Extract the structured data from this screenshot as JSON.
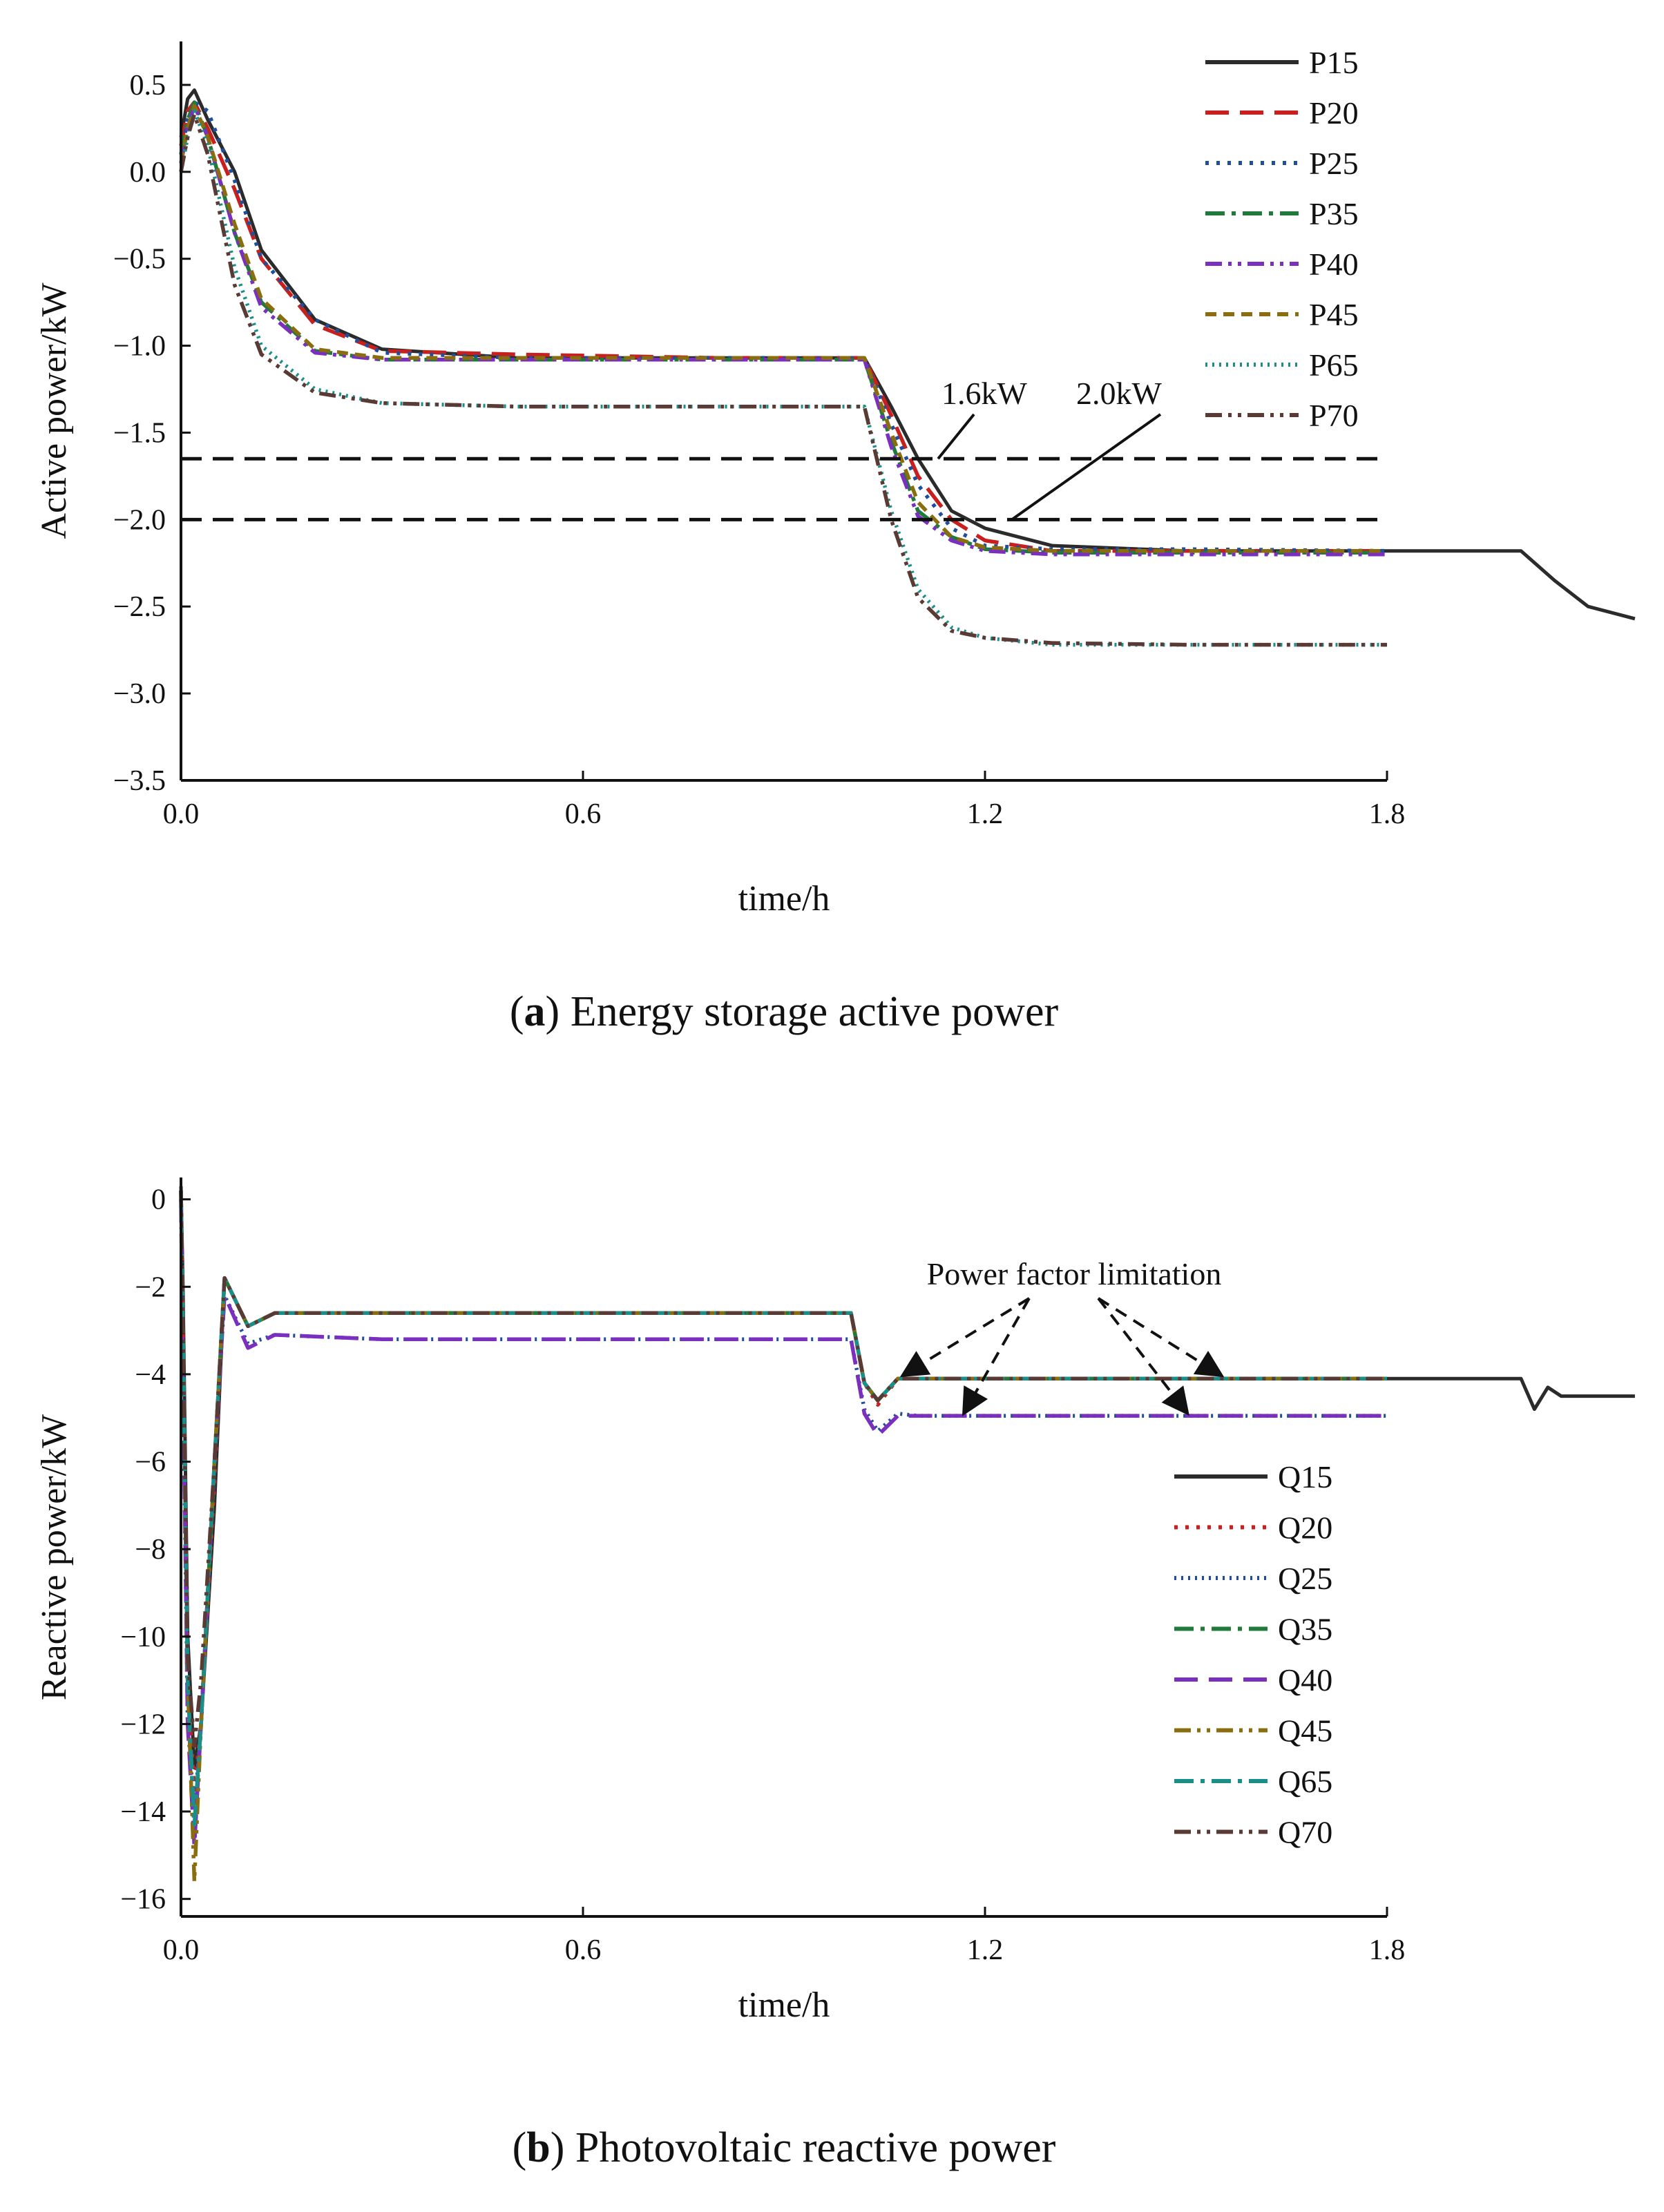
{
  "chart_data": [
    {
      "type": "line",
      "panel": "a",
      "caption_letter": "a",
      "caption_text": "Energy storage active power",
      "xlabel": "time/h",
      "ylabel": "Active power/kW",
      "xlim": [
        0,
        1.8
      ],
      "ylim": [
        -3.5,
        0.75
      ],
      "xticks": [
        0.0,
        0.6,
        1.2,
        1.8
      ],
      "xtick_labels": [
        "0.0",
        "0.6",
        "1.2",
        "1.8"
      ],
      "yticks": [
        0.5,
        0.0,
        -0.5,
        -1.0,
        -1.5,
        -2.0,
        -2.5,
        -3.0,
        -3.5
      ],
      "ytick_labels": [
        "0.5",
        "0.0",
        "−0.5",
        "−1.0",
        "−1.5",
        "−2.0",
        "−2.5",
        "−3.0",
        "−3.5"
      ],
      "reference_lines": [
        {
          "value": -1.65,
          "label": "1.6kW",
          "style": "dashed"
        },
        {
          "value": -2.0,
          "label": "2.0kW",
          "style": "dashed"
        }
      ],
      "legend_position": "top-right",
      "series": [
        {
          "name": "P15",
          "color": "#2b2b2b",
          "dash": "solid",
          "x": [
            0.0,
            0.01,
            0.02,
            0.04,
            0.08,
            0.12,
            0.2,
            0.3,
            0.5,
            0.8,
            1.02,
            1.06,
            1.1,
            1.15,
            1.2,
            1.3,
            1.5,
            1.8,
            2.0,
            2.05,
            2.1,
            2.17
          ],
          "y": [
            0.2,
            0.42,
            0.47,
            0.3,
            0.0,
            -0.45,
            -0.85,
            -1.02,
            -1.07,
            -1.07,
            -1.07,
            -1.35,
            -1.65,
            -1.95,
            -2.05,
            -2.15,
            -2.18,
            -2.18,
            -2.18,
            -2.35,
            -2.5,
            -2.57
          ]
        },
        {
          "name": "P20",
          "color": "#c8201e",
          "dash": "long-dash",
          "x": [
            0.0,
            0.01,
            0.02,
            0.04,
            0.08,
            0.12,
            0.2,
            0.3,
            0.5,
            0.8,
            1.02,
            1.06,
            1.1,
            1.15,
            1.2,
            1.3,
            1.5,
            1.8
          ],
          "y": [
            0.15,
            0.35,
            0.4,
            0.25,
            -0.1,
            -0.5,
            -0.88,
            -1.03,
            -1.05,
            -1.07,
            -1.07,
            -1.4,
            -1.75,
            -2.0,
            -2.12,
            -2.18,
            -2.18,
            -2.18
          ]
        },
        {
          "name": "P25",
          "color": "#1f4e9c",
          "dash": "dotted",
          "x": [
            0.0,
            0.01,
            0.02,
            0.04,
            0.08,
            0.12,
            0.2,
            0.3,
            0.5,
            0.8,
            1.02,
            1.06,
            1.1,
            1.15,
            1.2,
            1.3,
            1.5,
            1.8
          ],
          "y": [
            0.1,
            0.3,
            0.4,
            0.35,
            -0.05,
            -0.5,
            -0.85,
            -1.04,
            -1.07,
            -1.07,
            -1.07,
            -1.45,
            -1.8,
            -2.05,
            -2.15,
            -2.17,
            -2.17,
            -2.18
          ]
        },
        {
          "name": "P35",
          "color": "#217a3c",
          "dash": "dash-dot",
          "x": [
            0.0,
            0.01,
            0.02,
            0.04,
            0.08,
            0.12,
            0.2,
            0.3,
            0.5,
            0.8,
            1.02,
            1.06,
            1.1,
            1.15,
            1.2,
            1.3,
            1.5,
            1.8
          ],
          "y": [
            0.1,
            0.3,
            0.4,
            0.2,
            -0.35,
            -0.75,
            -1.03,
            -1.08,
            -1.08,
            -1.08,
            -1.08,
            -1.55,
            -1.95,
            -2.1,
            -2.17,
            -2.19,
            -2.19,
            -2.19
          ]
        },
        {
          "name": "P40",
          "color": "#7b2fbe",
          "dash": "dash-dot-dot",
          "x": [
            0.0,
            0.01,
            0.02,
            0.04,
            0.08,
            0.12,
            0.2,
            0.3,
            0.5,
            0.8,
            1.02,
            1.06,
            1.1,
            1.15,
            1.2,
            1.3,
            1.5,
            1.8
          ],
          "y": [
            0.05,
            0.25,
            0.38,
            0.2,
            -0.35,
            -0.78,
            -1.04,
            -1.08,
            -1.08,
            -1.08,
            -1.08,
            -1.58,
            -1.98,
            -2.12,
            -2.18,
            -2.2,
            -2.2,
            -2.2
          ]
        },
        {
          "name": "P45",
          "color": "#8a6d0f",
          "dash": "short-dash",
          "x": [
            0.0,
            0.01,
            0.02,
            0.04,
            0.08,
            0.12,
            0.2,
            0.3,
            0.5,
            0.8,
            1.02,
            1.06,
            1.1,
            1.15,
            1.2,
            1.3,
            1.5,
            1.8
          ],
          "y": [
            0.05,
            0.25,
            0.38,
            0.2,
            -0.3,
            -0.73,
            -1.02,
            -1.07,
            -1.07,
            -1.07,
            -1.07,
            -1.5,
            -1.9,
            -2.1,
            -2.16,
            -2.18,
            -2.18,
            -2.18
          ]
        },
        {
          "name": "P65",
          "color": "#1a8f8a",
          "dash": "fine-dot",
          "x": [
            0.0,
            0.01,
            0.02,
            0.04,
            0.08,
            0.12,
            0.2,
            0.3,
            0.5,
            0.8,
            1.02,
            1.06,
            1.1,
            1.15,
            1.2,
            1.3,
            1.5,
            1.8
          ],
          "y": [
            0.0,
            0.2,
            0.35,
            0.15,
            -0.55,
            -1.0,
            -1.25,
            -1.33,
            -1.35,
            -1.35,
            -1.35,
            -1.95,
            -2.4,
            -2.62,
            -2.68,
            -2.72,
            -2.72,
            -2.72
          ]
        },
        {
          "name": "P70",
          "color": "#5a3a35",
          "dash": "dash-dot-dot",
          "x": [
            0.0,
            0.01,
            0.02,
            0.04,
            0.08,
            0.12,
            0.2,
            0.3,
            0.5,
            0.8,
            1.02,
            1.06,
            1.1,
            1.15,
            1.2,
            1.3,
            1.5,
            1.8
          ],
          "y": [
            0.0,
            0.2,
            0.33,
            0.1,
            -0.65,
            -1.05,
            -1.27,
            -1.33,
            -1.35,
            -1.35,
            -1.35,
            -2.0,
            -2.45,
            -2.64,
            -2.68,
            -2.71,
            -2.72,
            -2.72
          ]
        }
      ]
    },
    {
      "type": "line",
      "panel": "b",
      "caption_letter": "b",
      "caption_text": "Photovoltaic reactive power",
      "xlabel": "time/h",
      "ylabel": "Reactive power/kW",
      "xlim": [
        0,
        1.8
      ],
      "ylim": [
        -16.4,
        0.5
      ],
      "xticks": [
        0.0,
        0.6,
        1.2,
        1.8
      ],
      "xtick_labels": [
        "0.0",
        "0.6",
        "1.2",
        "1.8"
      ],
      "yticks": [
        0,
        -2,
        -4,
        -6,
        -8,
        -10,
        -12,
        -14,
        -16
      ],
      "ytick_labels": [
        "0",
        "−2",
        "−4",
        "−6",
        "−8",
        "−10",
        "−12",
        "−14",
        "−16"
      ],
      "annotation": "Power factor limitation",
      "legend_position": "right",
      "series": [
        {
          "name": "Q15",
          "color": "#2b2b2b",
          "dash": "solid",
          "x": [
            0.0,
            0.003,
            0.01,
            0.02,
            0.03,
            0.05,
            0.065,
            0.1,
            0.14,
            0.3,
            0.6,
            1.0,
            1.02,
            1.04,
            1.07,
            1.1,
            1.3,
            1.8,
            2.0,
            2.02,
            2.04,
            2.06,
            2.1,
            2.17
          ],
          "y": [
            0.3,
            -2,
            -10,
            -13,
            -12,
            -7,
            -1.8,
            -2.9,
            -2.6,
            -2.6,
            -2.6,
            -2.6,
            -4.2,
            -4.6,
            -4.1,
            -4.1,
            -4.1,
            -4.1,
            -4.1,
            -4.8,
            -4.3,
            -4.5,
            -4.5,
            -4.5
          ]
        },
        {
          "name": "Q20",
          "color": "#c8201e",
          "dash": "dotted",
          "x": [
            0.0,
            0.003,
            0.01,
            0.02,
            0.03,
            0.05,
            0.065,
            0.1,
            0.14,
            0.3,
            0.6,
            1.0,
            1.02,
            1.04,
            1.07,
            1.1,
            1.3,
            1.8
          ],
          "y": [
            0.2,
            -3,
            -11,
            -13.5,
            -12,
            -6.5,
            -1.8,
            -2.9,
            -2.6,
            -2.6,
            -2.6,
            -2.6,
            -4.2,
            -4.7,
            -4.1,
            -4.1,
            -4.1,
            -4.1
          ]
        },
        {
          "name": "Q25",
          "color": "#1f4e9c",
          "dash": "fine-dot",
          "x": [
            0.0,
            0.003,
            0.01,
            0.02,
            0.03,
            0.05,
            0.065,
            0.1,
            0.14,
            0.3,
            0.6,
            1.0,
            1.02,
            1.04,
            1.07,
            1.1,
            1.3,
            1.8
          ],
          "y": [
            0.0,
            -4,
            -12,
            -14,
            -12,
            -6,
            -2.2,
            -3.3,
            -3.1,
            -3.2,
            -3.2,
            -3.2,
            -4.8,
            -5.3,
            -4.9,
            -4.95,
            -4.95,
            -4.95
          ]
        },
        {
          "name": "Q35",
          "color": "#217a3c",
          "dash": "dash-dot",
          "x": [
            0.0,
            0.003,
            0.01,
            0.02,
            0.03,
            0.05,
            0.065,
            0.1,
            0.14,
            0.3,
            0.6,
            1.0,
            1.02,
            1.04,
            1.07,
            1.1,
            1.3,
            1.8
          ],
          "y": [
            0.2,
            -3,
            -11,
            -14.5,
            -12,
            -6,
            -1.8,
            -2.9,
            -2.6,
            -2.6,
            -2.6,
            -2.6,
            -4.2,
            -4.6,
            -4.1,
            -4.1,
            -4.1,
            -4.1
          ]
        },
        {
          "name": "Q40",
          "color": "#7b2fbe",
          "dash": "long-dash",
          "x": [
            0.0,
            0.003,
            0.01,
            0.02,
            0.03,
            0.05,
            0.065,
            0.1,
            0.14,
            0.3,
            0.6,
            1.0,
            1.02,
            1.04,
            1.07,
            1.1,
            1.3,
            1.8
          ],
          "y": [
            0.0,
            -4,
            -12,
            -14.8,
            -12,
            -6,
            -2.2,
            -3.4,
            -3.1,
            -3.2,
            -3.2,
            -3.2,
            -4.9,
            -5.4,
            -4.95,
            -4.95,
            -4.95,
            -4.95
          ]
        },
        {
          "name": "Q45",
          "color": "#8a6d0f",
          "dash": "dash-dot-dot",
          "x": [
            0.0,
            0.003,
            0.01,
            0.02,
            0.03,
            0.05,
            0.065,
            0.1,
            0.14,
            0.3,
            0.6,
            1.0,
            1.02,
            1.04,
            1.07,
            1.1,
            1.3,
            1.8
          ],
          "y": [
            0.2,
            -3,
            -11,
            -15.6,
            -12,
            -6,
            -1.8,
            -2.9,
            -2.6,
            -2.6,
            -2.6,
            -2.6,
            -4.2,
            -4.6,
            -4.1,
            -4.1,
            -4.1,
            -4.1
          ]
        },
        {
          "name": "Q65",
          "color": "#1a8f8a",
          "dash": "dash-dot",
          "x": [
            0.0,
            0.003,
            0.01,
            0.02,
            0.03,
            0.05,
            0.065,
            0.1,
            0.14,
            0.3,
            0.6,
            1.0,
            1.02,
            1.04,
            1.07,
            1.1,
            1.3,
            1.8
          ],
          "y": [
            0.2,
            -3,
            -11,
            -14.3,
            -12,
            -6,
            -1.8,
            -2.9,
            -2.6,
            -2.6,
            -2.6,
            -2.6,
            -4.2,
            -4.6,
            -4.1,
            -4.1,
            -4.1,
            -4.1
          ]
        },
        {
          "name": "Q70",
          "color": "#5a3a35",
          "dash": "dash-dot-dot",
          "x": [
            0.0,
            0.003,
            0.01,
            0.02,
            0.03,
            0.05,
            0.065,
            0.1,
            0.14,
            0.3,
            0.6,
            1.0,
            1.02,
            1.04,
            1.07,
            1.1,
            1.3,
            1.8
          ],
          "y": [
            0.2,
            -3,
            -10.5,
            -12.5,
            -11,
            -6,
            -1.8,
            -2.9,
            -2.6,
            -2.6,
            -2.6,
            -2.6,
            -4.2,
            -4.6,
            -4.1,
            -4.1,
            -4.1,
            -4.1
          ]
        }
      ]
    }
  ]
}
